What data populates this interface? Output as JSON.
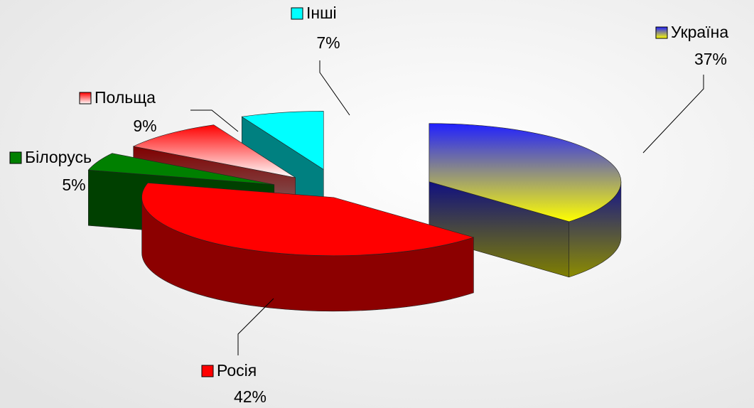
{
  "chart_data": {
    "type": "pie3d",
    "categories": [
      "Україна",
      "Росія",
      "Білорусь",
      "Польща",
      "Інші"
    ],
    "values": [
      37,
      42,
      5,
      9,
      7
    ],
    "value_labels": [
      "37%",
      "42%",
      "5%",
      "9%",
      "7%"
    ],
    "colors": [
      [
        "#2020ff",
        "#ffff00"
      ],
      "#ff0000",
      "#008000",
      [
        "#ff0000",
        "#ffffff"
      ],
      "#00ffff"
    ]
  }
}
